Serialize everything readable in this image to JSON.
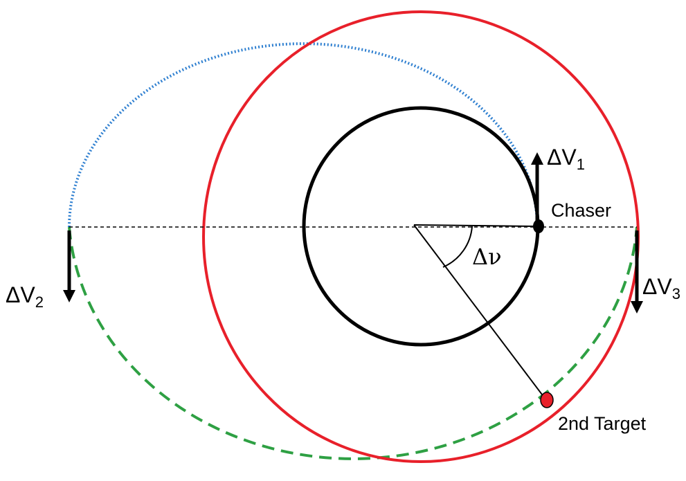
{
  "labels": {
    "dv1": {
      "main": "ΔV",
      "sub": "1"
    },
    "dv2": {
      "main": "ΔV",
      "sub": "2"
    },
    "dv3": {
      "main": "ΔV",
      "sub": "3"
    },
    "chaser": "Chaser",
    "target": "2nd Target",
    "delta_nu": "Δν"
  },
  "colors": {
    "inner_orbit": "#000000",
    "outer_orbit": "#e8202a",
    "transfer_upper": "#2e7fd0",
    "transfer_lower": "#2ea043",
    "target_dot": "#e8202a",
    "chaser_dot": "#000000"
  }
}
